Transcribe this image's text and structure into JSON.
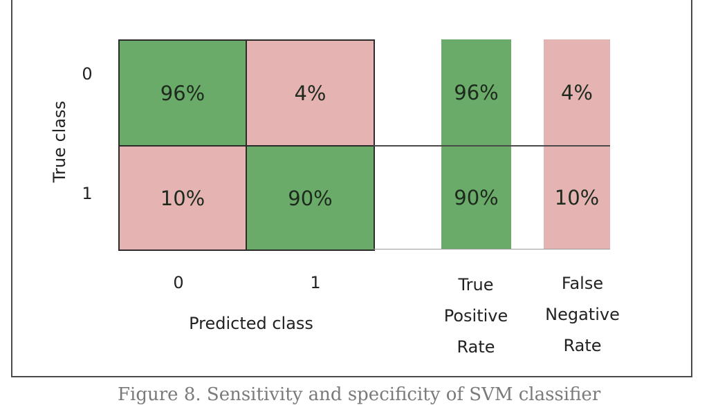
{
  "chart_data": {
    "type": "heatmap",
    "ylabel": "True class",
    "xlabel": "Predicted class",
    "row_labels": [
      "0",
      "1"
    ],
    "col_labels": [
      "0",
      "1"
    ],
    "matrix": [
      [
        "96%",
        "4%"
      ],
      [
        "10%",
        "90%"
      ]
    ],
    "matrix_values": [
      [
        96,
        4
      ],
      [
        10,
        90
      ]
    ],
    "rate_columns": [
      {
        "header": [
          "True",
          "Positive",
          "Rate"
        ],
        "values": [
          "96%",
          "90%"
        ],
        "color": "#6aab6a"
      },
      {
        "header": [
          "False",
          "Negative",
          "Rate"
        ],
        "values": [
          "4%",
          "10%"
        ],
        "color": "#e6b3b3"
      }
    ],
    "colors": {
      "correct": "#6aab6a",
      "incorrect": "#e6b3b3",
      "border": "#2b2b2b"
    }
  },
  "caption": "Figure 8. Sensitivity and specificity of SVM classifier"
}
